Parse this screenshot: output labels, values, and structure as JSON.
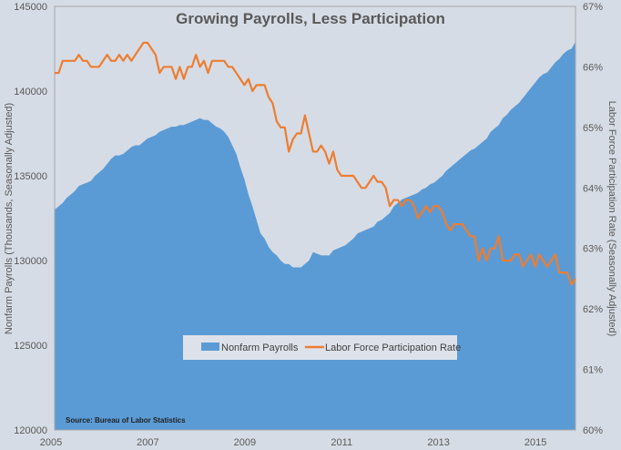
{
  "chart_data": {
    "type": "area+line",
    "title": "Growing Payrolls, Less Participation",
    "ylabel_left": "Nonfarm Payrolls (Thousands, Seasonally Adjusted)",
    "ylabel_right": "Labor Force Participation Rate (Seasonally Adjusted)",
    "xlabel": "",
    "x_start": "2005-01",
    "x_end": "2015-10",
    "x_ticks": [
      "2005",
      "2007",
      "2009",
      "2011",
      "2013",
      "2015"
    ],
    "y_left_ticks": [
      "145000",
      "140000",
      "135000",
      "130000",
      "125000",
      "120000"
    ],
    "y_right_ticks": [
      "67%",
      "66%",
      "65%",
      "64%",
      "63%",
      "62%",
      "61%",
      "60%"
    ],
    "ylim_left": [
      120000,
      145000
    ],
    "ylim_right": [
      60,
      67
    ],
    "legend": [
      "Nonfarm Payrolls",
      "Labor Force Participation Rate"
    ],
    "legend_position": "bottom-center",
    "source": "Source: Bureau of Labor Statistics",
    "colors": {
      "payrolls": "#5b9bd5",
      "participation": "#ed7d31",
      "background": "#d6dce5"
    },
    "series": [
      {
        "name": "Nonfarm Payrolls",
        "axis": "left",
        "type": "area",
        "values": [
          133000,
          133200,
          133400,
          133700,
          133900,
          134100,
          134400,
          134500,
          134600,
          134700,
          135000,
          135200,
          135400,
          135700,
          136000,
          136200,
          136200,
          136300,
          136500,
          136700,
          136800,
          136800,
          137000,
          137200,
          137300,
          137400,
          137600,
          137700,
          137800,
          137900,
          137900,
          138000,
          138000,
          138100,
          138200,
          138300,
          138400,
          138300,
          138300,
          138100,
          137900,
          137800,
          137600,
          137300,
          136800,
          136300,
          135500,
          134800,
          133900,
          133200,
          132400,
          131600,
          131300,
          130800,
          130500,
          130300,
          130000,
          129800,
          129800,
          129600,
          129600,
          129600,
          129800,
          130000,
          130500,
          130400,
          130300,
          130300,
          130300,
          130600,
          130700,
          130800,
          130900,
          131100,
          131300,
          131600,
          131700,
          131800,
          131900,
          132000,
          132300,
          132400,
          132600,
          132800,
          133200,
          133400,
          133600,
          133700,
          133800,
          133900,
          134000,
          134200,
          134300,
          134500,
          134600,
          134800,
          135000,
          135300,
          135500,
          135700,
          135900,
          136100,
          136300,
          136500,
          136600,
          136800,
          137000,
          137200,
          137600,
          137800,
          138000,
          138400,
          138600,
          138900,
          139100,
          139300,
          139600,
          139900,
          140200,
          140500,
          140800,
          141000,
          141100,
          141400,
          141700,
          141900,
          142200,
          142400,
          142500,
          142900
        ]
      },
      {
        "name": "Labor Force Participation Rate",
        "axis": "right",
        "type": "line",
        "values": [
          65.9,
          65.9,
          66.1,
          66.1,
          66.1,
          66.1,
          66.2,
          66.1,
          66.1,
          66.0,
          66.0,
          66.0,
          66.1,
          66.2,
          66.1,
          66.1,
          66.2,
          66.1,
          66.2,
          66.1,
          66.2,
          66.3,
          66.4,
          66.4,
          66.3,
          66.2,
          65.9,
          66.0,
          66.0,
          66.0,
          65.8,
          66.0,
          65.8,
          66.0,
          66.0,
          66.2,
          66.0,
          66.1,
          65.9,
          66.1,
          66.1,
          66.1,
          66.1,
          66.0,
          66.0,
          65.9,
          65.8,
          65.7,
          65.8,
          65.6,
          65.7,
          65.7,
          65.7,
          65.5,
          65.4,
          65.1,
          65.0,
          65.0,
          64.6,
          64.8,
          64.9,
          64.9,
          65.2,
          64.9,
          64.6,
          64.6,
          64.7,
          64.6,
          64.4,
          64.6,
          64.3,
          64.2,
          64.2,
          64.2,
          64.2,
          64.1,
          64.0,
          64.0,
          64.1,
          64.2,
          64.1,
          64.1,
          64.0,
          63.7,
          63.8,
          63.8,
          63.7,
          63.8,
          63.8,
          63.7,
          63.5,
          63.6,
          63.7,
          63.6,
          63.7,
          63.7,
          63.6,
          63.4,
          63.3,
          63.4,
          63.4,
          63.4,
          63.3,
          63.2,
          63.2,
          62.8,
          63.0,
          62.8,
          63.0,
          63.0,
          63.2,
          62.8,
          62.8,
          62.8,
          62.9,
          62.9,
          62.7,
          62.8,
          62.9,
          62.7,
          62.9,
          62.8,
          62.7,
          62.8,
          62.9,
          62.6,
          62.6,
          62.6,
          62.4,
          62.5
        ]
      }
    ]
  }
}
